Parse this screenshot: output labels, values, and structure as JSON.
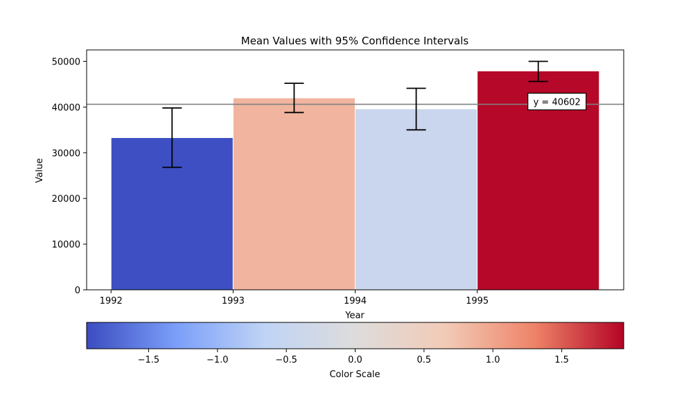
{
  "chart_data": {
    "type": "bar",
    "title": "Mean Values with 95% Confidence Intervals",
    "xlabel": "Year",
    "ylabel": "Value",
    "ylim": [
      0,
      52500
    ],
    "xlim": [
      1991.8,
      1996.2
    ],
    "categories": [
      "1992",
      "1993",
      "1994",
      "1995"
    ],
    "x_ticks": [
      1992,
      1993,
      1994,
      1995
    ],
    "y_ticks": [
      0,
      10000,
      20000,
      30000,
      40000,
      50000
    ],
    "bars": [
      {
        "x_start": 1992,
        "x_end": 1993,
        "value": 33300,
        "ci_low": 26800,
        "ci_high": 39800,
        "color_value": -1.93
      },
      {
        "x_start": 1993,
        "x_end": 1994,
        "value": 42000,
        "ci_low": 38800,
        "ci_high": 45200,
        "color_value": 0.85
      },
      {
        "x_start": 1994,
        "x_end": 1995,
        "value": 39600,
        "ci_low": 35000,
        "ci_high": 44100,
        "color_value": -0.45
      },
      {
        "x_start": 1995,
        "x_end": 1996,
        "value": 47900,
        "ci_low": 45600,
        "ci_high": 50000,
        "color_value": 1.93
      }
    ],
    "reference_line": {
      "y": 40602,
      "label": "y = 40602",
      "color": "#808080"
    },
    "colorbar": {
      "label": "Color Scale",
      "range": [
        -1.95,
        1.95
      ],
      "ticks": [
        -1.5,
        -1.0,
        -0.5,
        0.0,
        0.5,
        1.0,
        1.5
      ],
      "tick_labels": [
        "−1.5",
        "−1.0",
        "−0.5",
        "0.0",
        "0.5",
        "1.0",
        "1.5"
      ],
      "colormap": "coolwarm",
      "stops": [
        "#3b4cc0",
        "#7b9ff9",
        "#c0d4f5",
        "#dddcdc",
        "#f2cbb7",
        "#ee8468",
        "#b40426"
      ]
    },
    "grid": false
  }
}
